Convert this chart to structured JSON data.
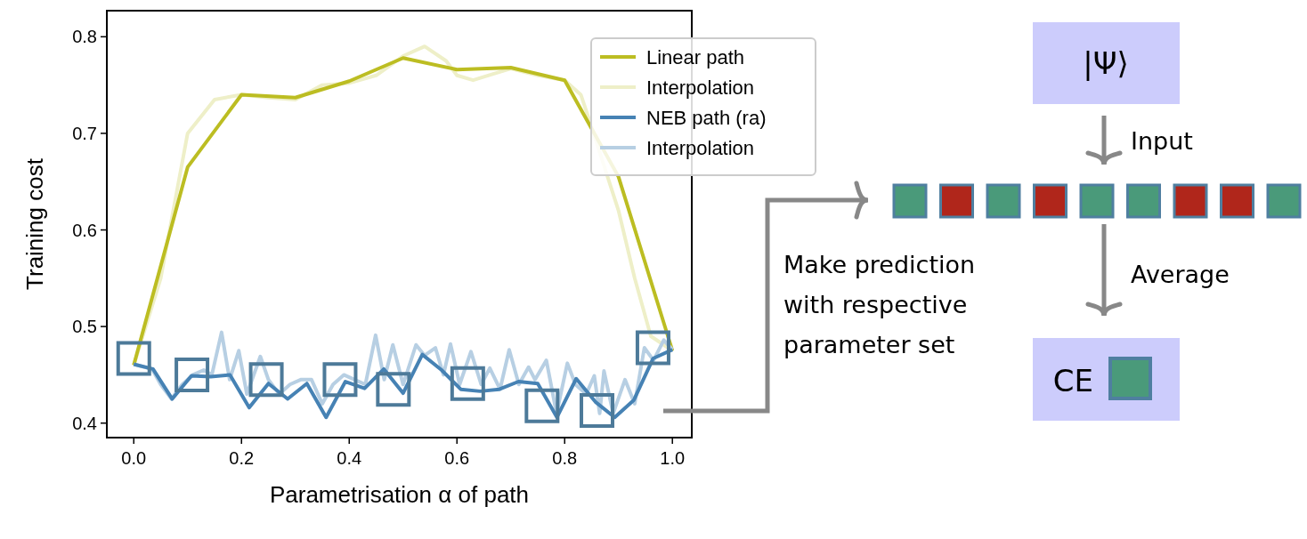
{
  "chart_data": {
    "type": "line",
    "xlabel": "Parametrisation α of path",
    "ylabel": "Training cost",
    "xlim": [
      -0.05,
      1.036
    ],
    "ylim": [
      0.385,
      0.827
    ],
    "xticks": [
      {
        "value": 0,
        "label": "0.0"
      },
      0.2,
      0.4,
      0.6,
      0.8,
      {
        "value": 1,
        "label": "1.0"
      }
    ],
    "yticks": [
      0.4,
      0.5,
      0.6,
      0.7,
      0.8
    ],
    "grid": false,
    "legend": "top right",
    "series": [
      {
        "name": "Linear path",
        "color": "#bcbd22",
        "x": [
          0,
          0.1,
          0.2,
          0.3,
          0.4,
          0.5,
          0.6,
          0.7,
          0.8,
          0.9,
          1.0
        ],
        "values": [
          0.46,
          0.665,
          0.74,
          0.737,
          0.754,
          0.778,
          0.766,
          0.768,
          0.755,
          0.655,
          0.475
        ]
      },
      {
        "name": "Interpolation",
        "color": "#eeefc8",
        "x": [
          0,
          0.05,
          0.1,
          0.15,
          0.2,
          0.25,
          0.3,
          0.35,
          0.4,
          0.45,
          0.5,
          0.54,
          0.58,
          0.6,
          0.63,
          0.67,
          0.7,
          0.75,
          0.8,
          0.83,
          0.845,
          0.9,
          0.93,
          0.96,
          1.0
        ],
        "values": [
          0.46,
          0.55,
          0.7,
          0.735,
          0.74,
          0.737,
          0.735,
          0.75,
          0.752,
          0.76,
          0.78,
          0.79,
          0.775,
          0.76,
          0.755,
          0.762,
          0.767,
          0.76,
          0.755,
          0.74,
          0.715,
          0.62,
          0.55,
          0.49,
          0.475
        ]
      },
      {
        "name": "NEB path (ra)",
        "color": "#4682b4",
        "x": [
          0,
          0.0357,
          0.0714,
          0.1071,
          0.1429,
          0.1786,
          0.2143,
          0.25,
          0.2857,
          0.3214,
          0.3571,
          0.3929,
          0.4286,
          0.4643,
          0.5,
          0.5357,
          0.5714,
          0.6071,
          0.6429,
          0.6786,
          0.7143,
          0.75,
          0.7857,
          0.8214,
          0.8571,
          0.8929,
          0.9286,
          0.9643,
          1.0
        ],
        "values": [
          0.461,
          0.456,
          0.425,
          0.449,
          0.448,
          0.45,
          0.416,
          0.441,
          0.425,
          0.441,
          0.406,
          0.443,
          0.436,
          0.456,
          0.431,
          0.471,
          0.455,
          0.435,
          0.433,
          0.435,
          0.443,
          0.441,
          0.406,
          0.446,
          0.422,
          0.406,
          0.424,
          0.467,
          0.476
        ]
      },
      {
        "name": "Interpolation",
        "color": "#b7cfe3",
        "x": [
          0,
          0.02,
          0.035,
          0.05,
          0.07,
          0.09,
          0.11,
          0.13,
          0.145,
          0.163,
          0.178,
          0.195,
          0.21,
          0.235,
          0.25,
          0.27,
          0.29,
          0.31,
          0.33,
          0.35,
          0.37,
          0.39,
          0.41,
          0.43,
          0.449,
          0.465,
          0.481,
          0.5,
          0.524,
          0.54,
          0.56,
          0.575,
          0.588,
          0.605,
          0.626,
          0.645,
          0.661,
          0.68,
          0.697,
          0.715,
          0.733,
          0.745,
          0.766,
          0.785,
          0.805,
          0.82,
          0.84,
          0.855,
          0.865,
          0.873,
          0.89,
          0.912,
          0.93,
          0.948,
          0.965,
          0.984,
          1.0
        ],
        "values": [
          0.461,
          0.458,
          0.455,
          0.44,
          0.425,
          0.44,
          0.45,
          0.455,
          0.45,
          0.494,
          0.445,
          0.475,
          0.43,
          0.469,
          0.445,
          0.43,
          0.44,
          0.445,
          0.445,
          0.42,
          0.44,
          0.45,
          0.445,
          0.44,
          0.491,
          0.445,
          0.481,
          0.44,
          0.481,
          0.47,
          0.478,
          0.45,
          0.482,
          0.44,
          0.474,
          0.44,
          0.457,
          0.435,
          0.476,
          0.44,
          0.458,
          0.445,
          0.465,
          0.41,
          0.462,
          0.44,
          0.43,
          0.449,
          0.41,
          0.454,
          0.41,
          0.445,
          0.42,
          0.478,
          0.465,
          0.486,
          0.476
        ]
      },
      {
        "type": "scatter",
        "marker": "square",
        "color": "#4d7a99",
        "x": [
          0,
          0.108,
          0.246,
          0.383,
          0.482,
          0.62,
          0.758,
          0.86,
          0.964
        ],
        "values": [
          0.467,
          0.45,
          0.445,
          0.445,
          0.435,
          0.441,
          0.418,
          0.413,
          0.478
        ]
      }
    ],
    "annotations": [
      "|Ψ⟩",
      "Input",
      "Average",
      "Make prediction\nwith respective\nparameter set",
      "CE"
    ]
  }
}
